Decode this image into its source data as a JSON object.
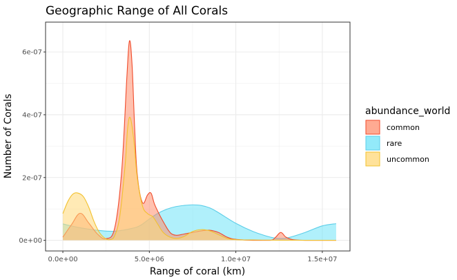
{
  "chart_data": {
    "type": "area",
    "title": "Geographic Range of All Corals",
    "xlabel": "Range of coral (km)",
    "ylabel": "Number of Corals",
    "xlim": [
      -1000000,
      16600000
    ],
    "ylim": [
      -3.4e-08,
      6.95e-07
    ],
    "x_ticks": [
      0,
      5000000,
      10000000,
      15000000
    ],
    "x_tick_labels": [
      "0.0e+00",
      "5.0e+06",
      "1.0e+07",
      "1.5e+07"
    ],
    "y_ticks": [
      0,
      2e-07,
      4e-07,
      6e-07
    ],
    "y_tick_labels": [
      "0e+00",
      "2e-07",
      "4e-07",
      "6e-07"
    ],
    "grid": true,
    "legend": {
      "title": "abundance_world",
      "position": "right",
      "entries": [
        "common",
        "rare",
        "uncommon"
      ]
    },
    "series": [
      {
        "name": "rare",
        "fill": "#6fe3f8",
        "stroke": "#5bcde8",
        "x": [
          0,
          1000000,
          2000000,
          3000000,
          4000000,
          4500000,
          5000000,
          5500000,
          6000000,
          6500000,
          7000000,
          7500000,
          8000000,
          8500000,
          9000000,
          10000000,
          11000000,
          12000000,
          12500000,
          13000000,
          14000000,
          15000000,
          15800000
        ],
        "y": [
          5.2e-08,
          4e-08,
          3.2e-08,
          2.9e-08,
          3.8e-08,
          4.8e-08,
          6.8e-08,
          8.6e-08,
          9.9e-08,
          1.07e-07,
          1.11e-07,
          1.13e-07,
          1.11e-07,
          1.03e-07,
          8.8e-08,
          5.4e-08,
          2.8e-08,
          1e-08,
          6e-09,
          8e-09,
          2.5e-08,
          4.6e-08,
          5.3e-08
        ]
      },
      {
        "name": "common",
        "fill": "#ff8e6e",
        "stroke": "#f04a2a",
        "x": [
          0,
          500000,
          1000000,
          1500000,
          2000000,
          2500000,
          3000000,
          3400000,
          3700000,
          3850000,
          4000000,
          4150000,
          4300000,
          4600000,
          4900000,
          5100000,
          5300000,
          5600000,
          5900000,
          6100000,
          6300000,
          6600000,
          7000000,
          7500000,
          8000000,
          8500000,
          9000000,
          9500000,
          10000000,
          11000000,
          12000000,
          12300000,
          12600000,
          12900000,
          13300000,
          14000000,
          15000000,
          15800000
        ],
        "y": [
          1e-08,
          5e-08,
          8.6e-08,
          5.5e-08,
          2e-08,
          5e-09,
          4e-08,
          2.2e-07,
          5.2e-07,
          6.35e-07,
          5.6e-07,
          3.6e-07,
          2.1e-07,
          1.2e-07,
          1.45e-07,
          1.5e-07,
          1.15e-07,
          8e-08,
          5e-08,
          3.2e-08,
          2e-08,
          1.6e-08,
          2e-08,
          2.5e-08,
          3e-08,
          3.2e-08,
          2.5e-08,
          1e-08,
          3e-09,
          0,
          0,
          1e-08,
          2.5e-08,
          1e-08,
          2e-09,
          0,
          0,
          0
        ]
      },
      {
        "name": "uncommon",
        "fill": "#ffd878",
        "stroke": "#f2c12e",
        "x": [
          0,
          300000,
          600000,
          900000,
          1200000,
          1500000,
          1800000,
          2100000,
          2400000,
          2700000,
          3000000,
          3300000,
          3600000,
          3750000,
          3900000,
          4100000,
          4300000,
          4600000,
          4900000,
          5200000,
          5500000,
          5800000,
          6200000,
          6600000,
          7000000,
          7500000,
          8000000,
          8500000,
          9000000,
          9500000,
          10000000,
          11000000,
          12000000,
          13000000,
          14000000,
          15000000,
          15800000
        ],
        "y": [
          8.5e-08,
          1.25e-07,
          1.48e-07,
          1.5e-07,
          1.38e-07,
          1.05e-07,
          6e-08,
          2.6e-08,
          8e-09,
          2e-09,
          1.5e-08,
          8e-08,
          2.4e-07,
          3.6e-07,
          3.9e-07,
          3.2e-07,
          2e-07,
          1.1e-07,
          8.5e-08,
          7.5e-08,
          5e-08,
          2.5e-08,
          1e-08,
          6e-09,
          1.2e-08,
          2.8e-08,
          3.4e-08,
          3e-08,
          1.8e-08,
          6e-09,
          2e-09,
          1e-09,
          5e-10,
          3e-10,
          1e-10,
          0,
          0
        ]
      }
    ]
  }
}
